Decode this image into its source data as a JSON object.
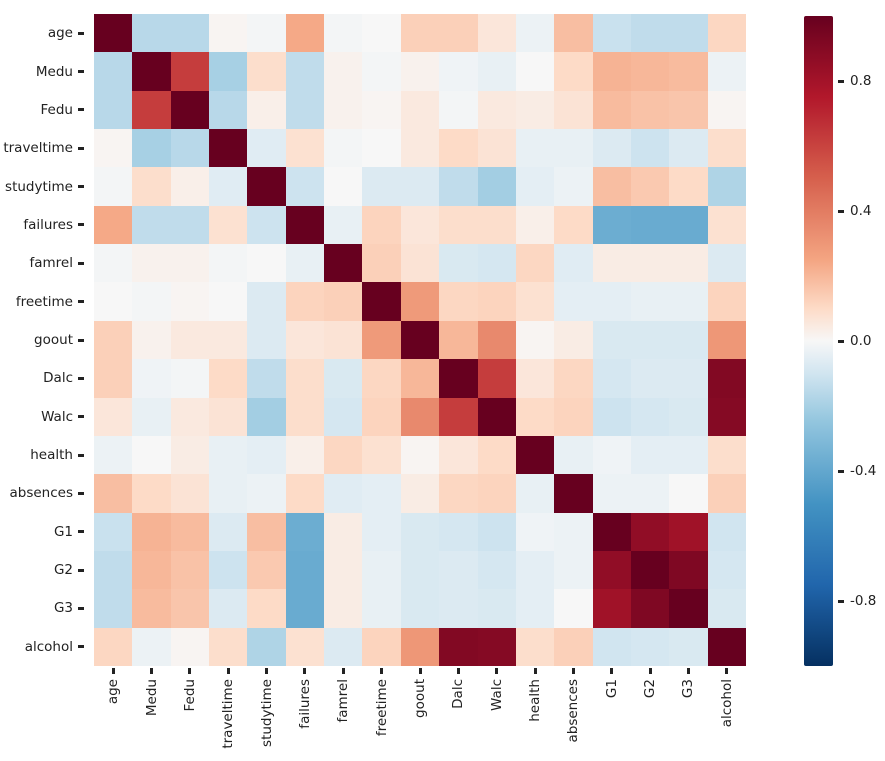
{
  "chart_data": {
    "type": "heatmap",
    "title": "",
    "xlabel": "",
    "ylabel": "",
    "colormap": "RdBu_r",
    "vmin": -1.0,
    "vmax": 1.0,
    "labels": [
      "age",
      "Medu",
      "Fedu",
      "traveltime",
      "studytime",
      "failures",
      "famrel",
      "freetime",
      "goout",
      "Dalc",
      "Walc",
      "health",
      "absences",
      "G1",
      "G2",
      "G3",
      "alcohol"
    ],
    "matrix": [
      [
        1.0,
        -0.16,
        -0.16,
        0.01,
        -0.01,
        0.24,
        -0.01,
        0.0,
        0.13,
        0.13,
        0.06,
        -0.03,
        0.18,
        -0.12,
        -0.14,
        -0.14,
        0.11
      ],
      [
        -0.16,
        1.0,
        0.62,
        -0.2,
        0.09,
        -0.14,
        0.02,
        -0.01,
        0.02,
        -0.02,
        -0.04,
        0.0,
        0.1,
        0.21,
        0.2,
        0.19,
        -0.03
      ],
      [
        -0.16,
        0.62,
        1.0,
        -0.16,
        0.03,
        -0.14,
        0.02,
        0.01,
        0.05,
        -0.01,
        0.05,
        0.04,
        0.07,
        0.19,
        0.17,
        0.16,
        0.01
      ],
      [
        0.01,
        -0.2,
        -0.16,
        1.0,
        -0.06,
        0.08,
        -0.01,
        0.0,
        0.05,
        0.1,
        0.07,
        -0.04,
        -0.04,
        -0.07,
        -0.11,
        -0.07,
        0.09
      ],
      [
        -0.01,
        0.09,
        0.03,
        -0.06,
        1.0,
        -0.11,
        0.0,
        -0.07,
        -0.07,
        -0.14,
        -0.21,
        -0.05,
        -0.03,
        0.18,
        0.15,
        0.1,
        -0.18
      ],
      [
        0.24,
        -0.14,
        -0.14,
        0.08,
        -0.11,
        1.0,
        -0.04,
        0.12,
        0.06,
        0.09,
        0.09,
        0.03,
        0.1,
        -0.37,
        -0.38,
        -0.38,
        0.08
      ],
      [
        -0.01,
        0.02,
        0.02,
        -0.01,
        0.0,
        -0.04,
        1.0,
        0.13,
        0.07,
        -0.08,
        -0.09,
        0.11,
        -0.06,
        0.04,
        0.04,
        0.04,
        -0.07
      ],
      [
        0.0,
        -0.01,
        0.01,
        0.0,
        -0.07,
        0.12,
        0.13,
        1.0,
        0.29,
        0.11,
        0.12,
        0.08,
        -0.05,
        -0.05,
        -0.04,
        -0.04,
        0.12
      ],
      [
        0.13,
        0.02,
        0.05,
        0.05,
        -0.07,
        0.06,
        0.07,
        0.29,
        1.0,
        0.2,
        0.35,
        0.01,
        0.04,
        -0.08,
        -0.08,
        -0.08,
        0.3
      ],
      [
        0.13,
        -0.02,
        -0.01,
        0.1,
        -0.14,
        0.09,
        -0.08,
        0.11,
        0.2,
        1.0,
        0.62,
        0.06,
        0.11,
        -0.09,
        -0.07,
        -0.07,
        0.91
      ],
      [
        0.06,
        -0.04,
        0.05,
        0.07,
        -0.21,
        0.09,
        -0.09,
        0.12,
        0.35,
        0.62,
        1.0,
        0.1,
        0.12,
        -0.11,
        -0.09,
        -0.08,
        0.9
      ],
      [
        -0.03,
        0.0,
        0.04,
        -0.04,
        -0.05,
        0.03,
        0.11,
        0.08,
        0.01,
        0.06,
        0.1,
        1.0,
        -0.04,
        -0.02,
        -0.05,
        -0.05,
        0.09
      ],
      [
        0.18,
        0.1,
        0.07,
        -0.04,
        -0.03,
        0.1,
        -0.06,
        -0.05,
        0.04,
        0.11,
        0.12,
        -0.04,
        1.0,
        -0.03,
        -0.03,
        0.0,
        0.13
      ],
      [
        -0.12,
        0.21,
        0.19,
        -0.07,
        0.18,
        -0.37,
        0.04,
        -0.05,
        -0.08,
        -0.09,
        -0.11,
        -0.02,
        -0.03,
        1.0,
        0.86,
        0.81,
        -0.1
      ],
      [
        -0.14,
        0.2,
        0.17,
        -0.11,
        0.15,
        -0.38,
        0.04,
        -0.04,
        -0.08,
        -0.07,
        -0.09,
        -0.05,
        -0.03,
        0.86,
        1.0,
        0.92,
        -0.09
      ],
      [
        -0.14,
        0.19,
        0.16,
        -0.07,
        0.1,
        -0.38,
        0.04,
        -0.04,
        -0.08,
        -0.07,
        -0.08,
        -0.05,
        0.0,
        0.81,
        0.92,
        1.0,
        -0.08
      ],
      [
        0.11,
        -0.03,
        0.01,
        0.09,
        -0.18,
        0.08,
        -0.07,
        0.12,
        0.3,
        0.91,
        0.9,
        0.09,
        0.13,
        -0.1,
        -0.09,
        -0.08,
        1.0
      ]
    ],
    "colorbar": {
      "ticks": [
        0.8,
        0.4,
        0.0,
        -0.4,
        -0.8
      ],
      "tick_labels": [
        "0.8",
        "0.4",
        "0.0",
        "-0.4",
        "-0.8"
      ],
      "position": "right"
    },
    "grid": false,
    "legend_position": "none"
  },
  "colors": {
    "max": "#67001f",
    "mid": "#f7f7f7",
    "min": "#053061"
  }
}
